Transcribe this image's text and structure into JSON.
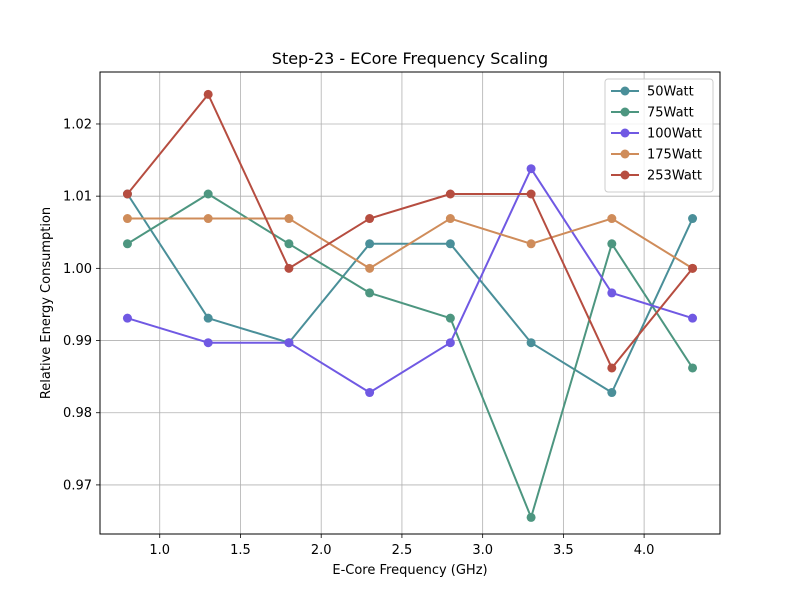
{
  "chart_data": {
    "type": "line",
    "title": "Step-23 - ECore Frequency Scaling",
    "xlabel": "E-Core Frequency (GHz)",
    "ylabel": "Relative Energy Consumption",
    "xlim": [
      0.63,
      4.47
    ],
    "ylim": [
      0.9632,
      1.0272
    ],
    "xticks": [
      "1.0",
      "1.5",
      "2.0",
      "2.5",
      "3.0",
      "3.5",
      "4.0"
    ],
    "xtick_values": [
      1.0,
      1.5,
      2.0,
      2.5,
      3.0,
      3.5,
      4.0
    ],
    "yticks": [
      "0.97",
      "0.98",
      "0.99",
      "1.00",
      "1.01",
      "1.02"
    ],
    "ytick_values": [
      0.97,
      0.98,
      0.99,
      1.0,
      1.01,
      1.02
    ],
    "grid": true,
    "legend_position": "top-right",
    "x": [
      0.8,
      1.3,
      1.8,
      2.3,
      2.8,
      3.3,
      3.8,
      4.3
    ],
    "series": [
      {
        "name": "50Watt",
        "color": "#4a8f99",
        "values": [
          1.0103,
          0.9931,
          0.9897,
          1.0034,
          1.0034,
          0.9897,
          0.9828,
          1.0069
        ]
      },
      {
        "name": "75Watt",
        "color": "#4d9680",
        "values": [
          1.0034,
          1.0103,
          1.0034,
          0.9966,
          0.9931,
          0.9655,
          1.0034,
          0.9862
        ]
      },
      {
        "name": "100Watt",
        "color": "#7059e3",
        "values": [
          0.9931,
          0.9897,
          0.9897,
          0.9828,
          0.9897,
          1.0138,
          0.9966,
          0.9931
        ]
      },
      {
        "name": "175Watt",
        "color": "#cf8c5a",
        "values": [
          1.0069,
          1.0069,
          1.0069,
          1.0,
          1.0069,
          1.0034,
          1.0069,
          1.0
        ]
      },
      {
        "name": "253Watt",
        "color": "#b64d40",
        "values": [
          1.0103,
          1.0241,
          1.0,
          1.0069,
          1.0103,
          1.0103,
          0.9862,
          1.0
        ]
      }
    ]
  }
}
